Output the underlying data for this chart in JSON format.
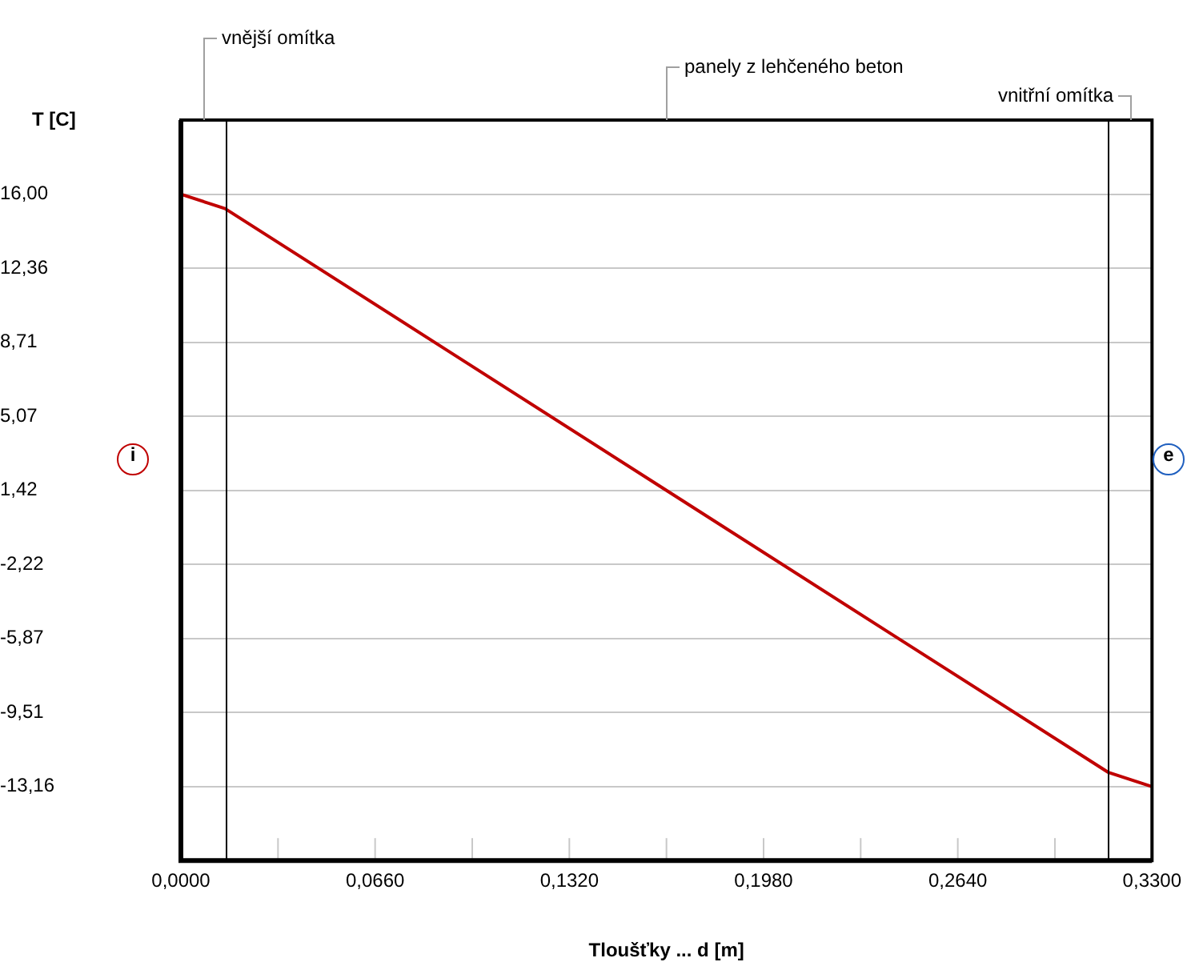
{
  "chart_data": {
    "type": "line",
    "ylabel": "T [C]",
    "xlabel": "Tloušťky ... d [m]",
    "x": [
      0,
      0.015,
      0.09,
      0.165,
      0.24,
      0.315,
      0.33
    ],
    "series": [
      {
        "color": "#c00000",
        "values": [
          16.0,
          15.29,
          8.36,
          1.42,
          -5.52,
          -12.45,
          -13.16
        ]
      }
    ],
    "xlim": [
      0,
      0.33
    ],
    "xticks": [
      {
        "value": 0,
        "label": "0,0000"
      },
      {
        "value": 0.033,
        "label": null
      },
      {
        "value": 0.066,
        "label": "0,0660"
      },
      {
        "value": 0.099,
        "label": null
      },
      {
        "value": 0.132,
        "label": "0,1320"
      },
      {
        "value": 0.165,
        "label": null
      },
      {
        "value": 0.198,
        "label": "0,1980"
      },
      {
        "value": 0.231,
        "label": null
      },
      {
        "value": 0.264,
        "label": "0,2640"
      },
      {
        "value": 0.297,
        "label": null
      },
      {
        "value": 0.33,
        "label": "0,3300"
      }
    ],
    "ylim": [
      -16.8,
      19.65
    ],
    "yticks": [
      {
        "value": 16,
        "label": "16,00"
      },
      {
        "value": 12.36,
        "label": "12,36"
      },
      {
        "value": 8.71,
        "label": "8,71"
      },
      {
        "value": 5.07,
        "label": "5,07"
      },
      {
        "value": 1.42,
        "label": "1,42"
      },
      {
        "value": -2.22,
        "label": "-2,22"
      },
      {
        "value": -5.87,
        "label": "-5,87"
      },
      {
        "value": -9.51,
        "label": "-9,51"
      },
      {
        "value": -13.16,
        "label": "-13,16"
      }
    ],
    "ref_lines": [
      {
        "axis": "x",
        "value": 0.015,
        "color": "#000000"
      },
      {
        "axis": "x",
        "value": 0.315,
        "color": "#000000"
      }
    ],
    "annotations": [
      "vnější omítka",
      "panely z lehčeného beton",
      "vnitřní omítka",
      "i",
      "e"
    ],
    "grid": "y",
    "legend": false,
    "marker": "none",
    "line_style": "solid"
  }
}
